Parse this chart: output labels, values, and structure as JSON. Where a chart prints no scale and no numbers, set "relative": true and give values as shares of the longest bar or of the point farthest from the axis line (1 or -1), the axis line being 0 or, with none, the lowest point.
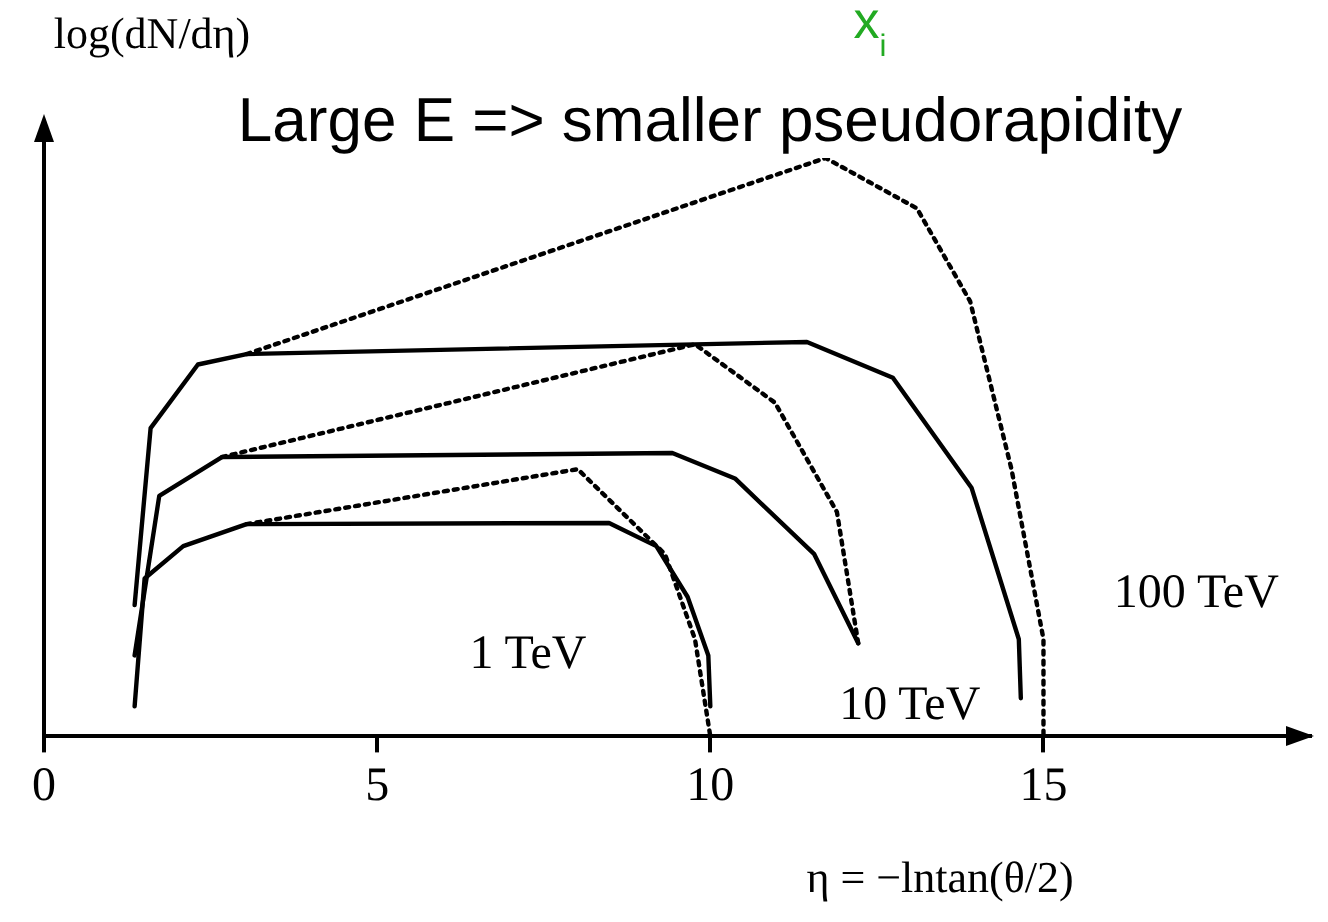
{
  "chart_data": {
    "type": "line",
    "title": "Large E => smaller pseudorapidity",
    "xlabel": "η = −lntan(θ/2)",
    "ylabel": "log(dN/dη)",
    "relative": true,
    "xlim": [
      0,
      19
    ],
    "xticks": [
      0,
      5,
      10,
      15
    ],
    "grid": false,
    "legend": false,
    "marker": "none",
    "series": [
      {
        "color": "#000000",
        "line_style": "solid",
        "x": [
          1.36,
          1.51,
          2.09,
          3.04,
          8.48,
          9.19,
          9.66,
          9.97,
          10
        ],
        "values": [
          0.052,
          0.273,
          0.329,
          0.367,
          0.369,
          0.329,
          0.241,
          0.14,
          0.052
        ]
      },
      {
        "color": "#000000",
        "line_style": "dotted",
        "x": [
          3.04,
          8.01,
          9.32,
          9.77,
          10
        ],
        "values": [
          0.367,
          0.462,
          0.315,
          0.168,
          0
        ]
      },
      {
        "color": "#000000",
        "line_style": "solid",
        "x": [
          1.36,
          1.73,
          2.67,
          9.43,
          10.37,
          11.56,
          12.22
        ],
        "values": [
          0.14,
          0.416,
          0.483,
          0.49,
          0.446,
          0.315,
          0.161
        ]
      },
      {
        "color": "#000000",
        "line_style": "dotted",
        "x": [
          2.67,
          9.77,
          10.97,
          11.9,
          12.22
        ],
        "values": [
          0.483,
          0.678,
          0.577,
          0.388,
          0.161
        ]
      },
      {
        "color": "#000000",
        "line_style": "solid",
        "x": [
          1.36,
          1.6,
          2.31,
          3.04,
          11.45,
          12.74,
          13.92,
          14.63,
          14.66
        ],
        "values": [
          0.227,
          0.533,
          0.643,
          0.661,
          0.682,
          0.62,
          0.43,
          0.168,
          0.066
        ]
      },
      {
        "color": "#000000",
        "line_style": "dotted",
        "x": [
          3.04,
          11.73,
          13.1,
          13.9,
          14.52,
          15,
          15
        ],
        "values": [
          0.661,
          1,
          0.913,
          0.752,
          0.462,
          0.168,
          0
        ]
      }
    ],
    "annotations": [
      "1 TeV",
      "10 TeV",
      "100 TeV",
      "x$_{i}$"
    ]
  }
}
